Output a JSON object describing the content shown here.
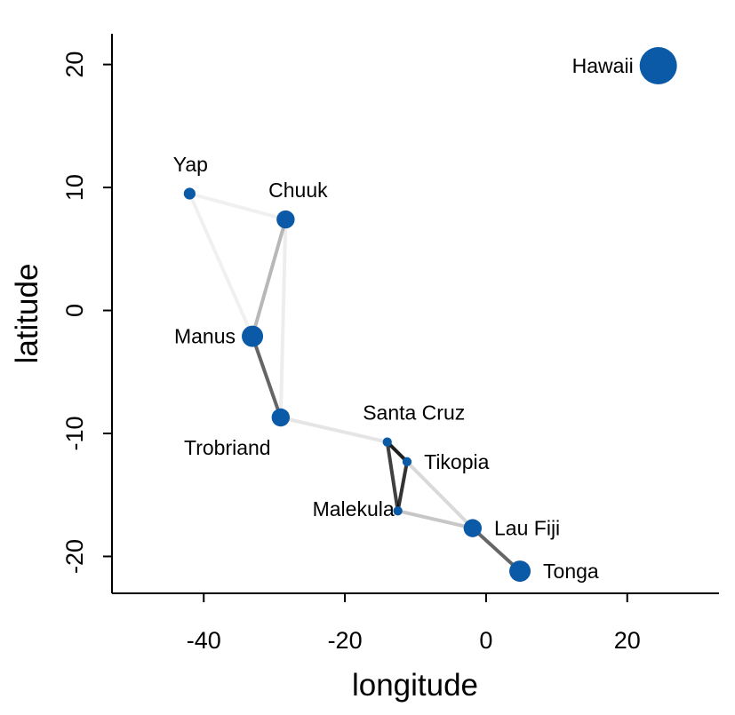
{
  "chart_data": {
    "type": "scatter",
    "title": "",
    "xlabel": "longitude",
    "ylabel": "latitude",
    "xlim": [
      -53,
      33
    ],
    "ylim": [
      -23,
      22.5
    ],
    "x_ticks": [
      -40,
      -20,
      0,
      20
    ],
    "y_ticks": [
      -20,
      -10,
      0,
      10,
      20
    ],
    "x_tick_labels": [
      "-40",
      "-20",
      "0",
      "20"
    ],
    "y_tick_labels": [
      "-20",
      "-10",
      "0",
      "10",
      "20"
    ],
    "grid": false,
    "point_color": "#0b5aa8",
    "points": [
      {
        "name": "Hawaii",
        "lon": 24.4,
        "lat": 19.9,
        "size": 5.0,
        "label_pos": "left"
      },
      {
        "name": "Yap",
        "lon": -42.0,
        "lat": 9.5,
        "size": 1.0,
        "label_pos": "above"
      },
      {
        "name": "Chuuk",
        "lon": -28.4,
        "lat": 7.4,
        "size": 2.0,
        "label_pos": "above"
      },
      {
        "name": "Manus",
        "lon": -33.1,
        "lat": -2.1,
        "size": 2.5,
        "label_pos": "left"
      },
      {
        "name": "Trobriand",
        "lon": -29.1,
        "lat": -8.7,
        "size": 2.0,
        "label_pos": "below-left"
      },
      {
        "name": "Santa Cruz",
        "lon": -14.0,
        "lat": -10.7,
        "size": 0.6,
        "label_pos": "above"
      },
      {
        "name": "Tikopia",
        "lon": -11.2,
        "lat": -12.3,
        "size": 0.6,
        "label_pos": "right"
      },
      {
        "name": "Malekula",
        "lon": -12.5,
        "lat": -16.3,
        "size": 0.6,
        "label_pos": "left"
      },
      {
        "name": "Lau Fiji",
        "lon": -1.9,
        "lat": -17.7,
        "size": 2.0,
        "label_pos": "right"
      },
      {
        "name": "Tonga",
        "lon": 4.8,
        "lat": -21.2,
        "size": 2.5,
        "label_pos": "right"
      }
    ],
    "edges": [
      {
        "from": "Yap",
        "to": "Chuuk",
        "strength": 0.06
      },
      {
        "from": "Yap",
        "to": "Manus",
        "strength": 0.06
      },
      {
        "from": "Chuuk",
        "to": "Manus",
        "strength": 0.28
      },
      {
        "from": "Chuuk",
        "to": "Trobriand",
        "strength": 0.07
      },
      {
        "from": "Manus",
        "to": "Trobriand",
        "strength": 0.6
      },
      {
        "from": "Trobriand",
        "to": "Santa Cruz",
        "strength": 0.1
      },
      {
        "from": "Santa Cruz",
        "to": "Tikopia",
        "strength": 0.85
      },
      {
        "from": "Santa Cruz",
        "to": "Malekula",
        "strength": 0.75
      },
      {
        "from": "Tikopia",
        "to": "Malekula",
        "strength": 0.8
      },
      {
        "from": "Santa Cruz",
        "to": "Lau Fiji",
        "strength": 0.15
      },
      {
        "from": "Malekula",
        "to": "Lau Fiji",
        "strength": 0.22
      },
      {
        "from": "Lau Fiji",
        "to": "Tonga",
        "strength": 0.6
      }
    ]
  }
}
